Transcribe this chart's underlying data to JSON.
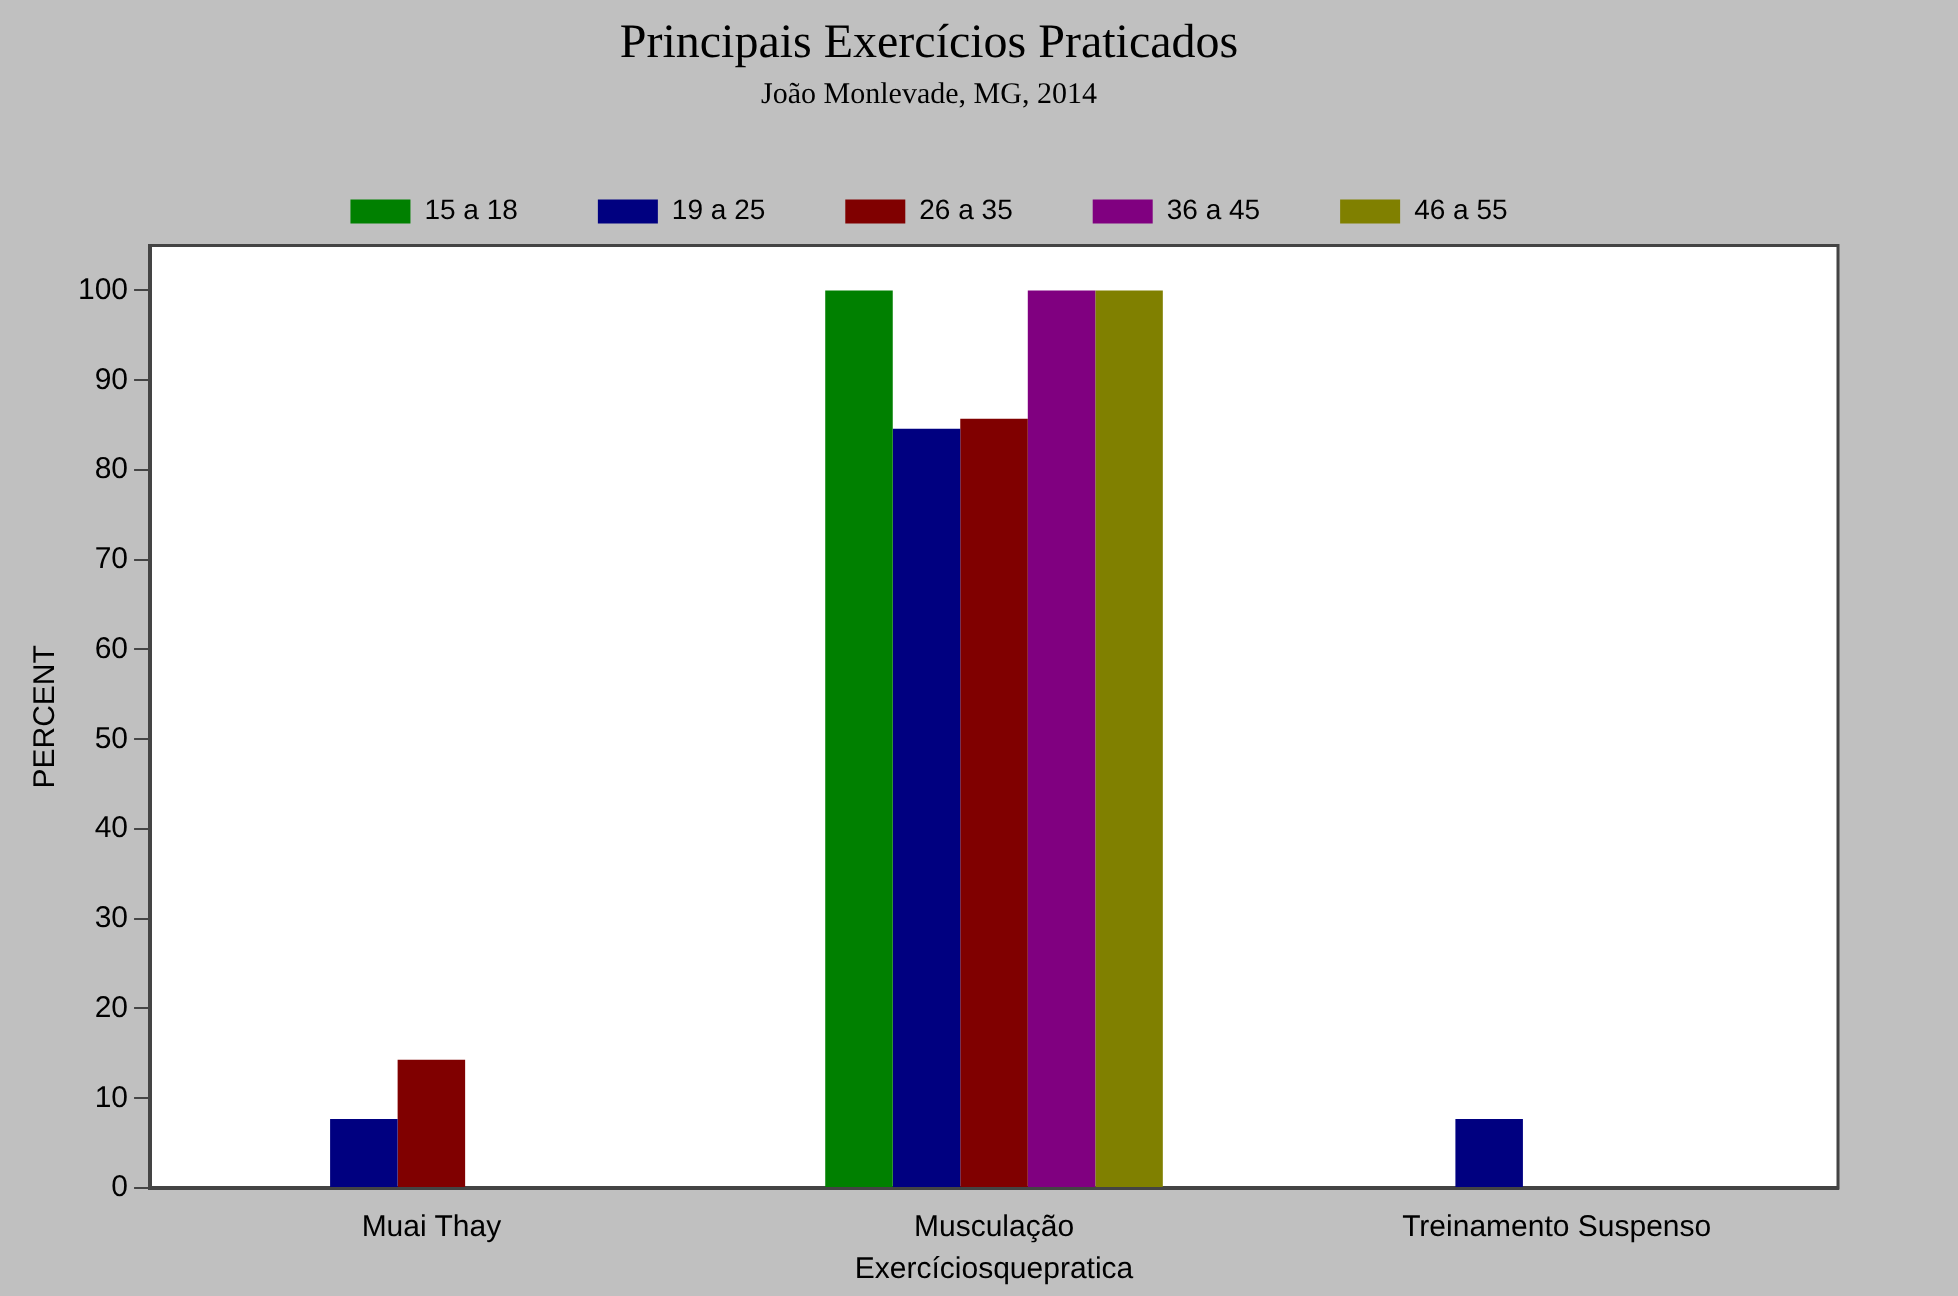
{
  "chart_data": {
    "type": "bar",
    "title": "Principais Exercícios Praticados",
    "subtitle": "João Monlevade, MG, 2014",
    "xlabel": "Exercíciosquepratica",
    "ylabel": "PERCENT",
    "categories": [
      "Muai Thay",
      "Musculação",
      "Treinamento Suspenso"
    ],
    "series": [
      {
        "name": "15 a 18",
        "color": "#008000",
        "values": [
          0,
          100,
          0
        ]
      },
      {
        "name": "19 a 25",
        "color": "#000080",
        "values": [
          7.7,
          84.6,
          7.7
        ]
      },
      {
        "name": "26 a 35",
        "color": "#800000",
        "values": [
          14.3,
          85.7,
          0
        ]
      },
      {
        "name": "36 a 45",
        "color": "#800080",
        "values": [
          0,
          100,
          0
        ]
      },
      {
        "name": "46 a 55",
        "color": "#808000",
        "values": [
          0,
          100,
          0
        ]
      }
    ],
    "ylim": [
      0,
      105
    ],
    "yticks": [
      0,
      10,
      20,
      30,
      40,
      50,
      60,
      70,
      80,
      90,
      100
    ],
    "grid": false,
    "legend": "top"
  }
}
